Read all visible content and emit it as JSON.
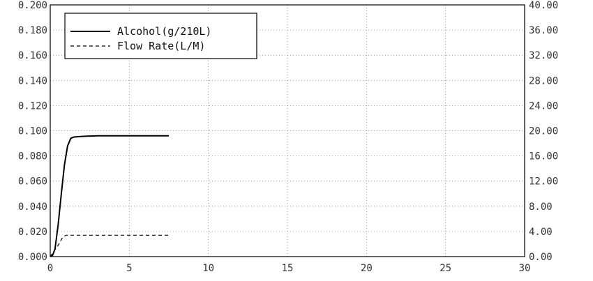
{
  "chart_data": {
    "type": "line",
    "title": "",
    "xlabel": "",
    "ylabel_left": "",
    "ylabel_right": "",
    "xlim": [
      0,
      30
    ],
    "ylim_left": [
      0.0,
      0.2
    ],
    "ylim_right": [
      0.0,
      40.0
    ],
    "grid": true,
    "legend_position": "top-left",
    "x_ticks": [
      "0",
      "5",
      "10",
      "15",
      "20",
      "25",
      "30"
    ],
    "y_left_ticks": [
      "0.000",
      "0.020",
      "0.040",
      "0.060",
      "0.080",
      "0.100",
      "0.120",
      "0.140",
      "0.160",
      "0.180",
      "0.200"
    ],
    "y_right_ticks": [
      "0.00",
      "4.00",
      "8.00",
      "12.00",
      "16.00",
      "20.00",
      "24.00",
      "28.00",
      "32.00",
      "36.00",
      "40.00"
    ],
    "series": [
      {
        "name": "Alcohol(g/210L)",
        "axis": "left",
        "style": "solid",
        "color": "#000000",
        "x": [
          0,
          0.15,
          0.3,
          0.5,
          0.7,
          0.9,
          1.1,
          1.3,
          1.5,
          2,
          3,
          4,
          5,
          6,
          7,
          7.5
        ],
        "y": [
          0.0,
          0.001,
          0.006,
          0.025,
          0.05,
          0.073,
          0.088,
          0.094,
          0.095,
          0.0955,
          0.096,
          0.096,
          0.096,
          0.096,
          0.096,
          0.096
        ]
      },
      {
        "name": "Flow Rate(L/M)",
        "axis": "right",
        "style": "dashed",
        "color": "#000000",
        "x": [
          0,
          0.5,
          0.8,
          1.0,
          2,
          3,
          4,
          5,
          6,
          7,
          7.5
        ],
        "y": [
          0.0,
          1.8,
          3.1,
          3.4,
          3.4,
          3.4,
          3.4,
          3.4,
          3.4,
          3.4,
          3.4
        ]
      }
    ]
  }
}
